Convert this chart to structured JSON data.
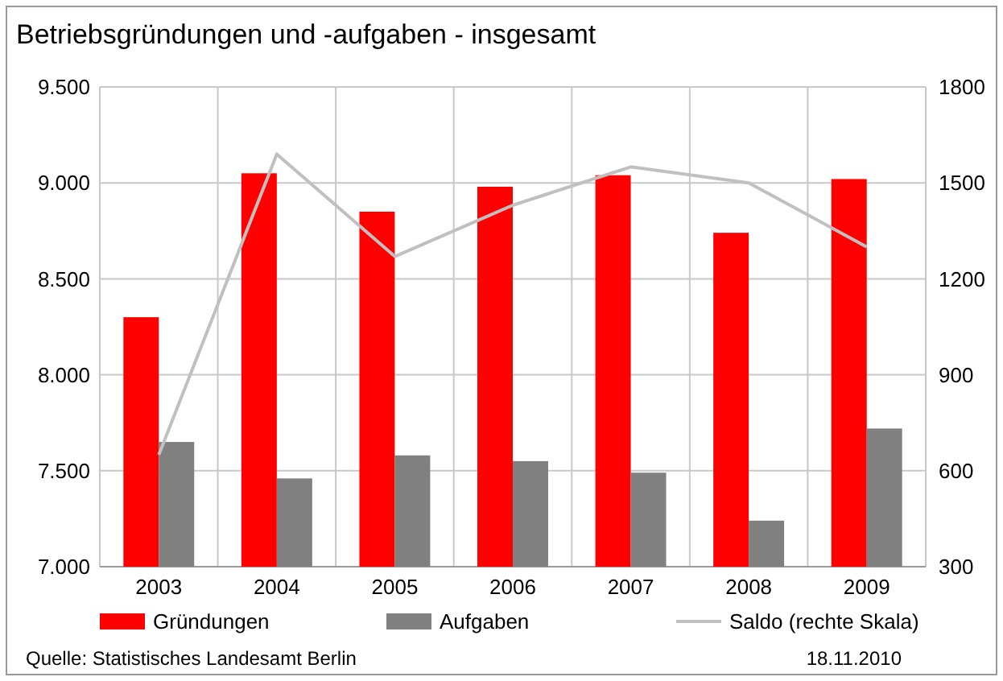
{
  "chart_data": {
    "type": "bar",
    "title": "Betriebsgründungen und -aufgaben - insgesamt",
    "categories": [
      "2003",
      "2004",
      "2005",
      "2006",
      "2007",
      "2008",
      "2009"
    ],
    "series": [
      {
        "name": "Gründungen",
        "color": "#ff0000",
        "values": [
          8300,
          9050,
          8850,
          8980,
          9040,
          8740,
          9020
        ]
      },
      {
        "name": "Aufgaben",
        "color": "#808080",
        "values": [
          7650,
          7460,
          7580,
          7550,
          7490,
          7240,
          7720
        ]
      },
      {
        "name": "Saldo (rechte Skala)",
        "type": "line",
        "axis": "y2",
        "color": "#c0c0c0",
        "values": [
          650,
          1590,
          1270,
          1430,
          1550,
          1500,
          1300
        ]
      }
    ],
    "ylim": [
      7000,
      9500
    ],
    "yticks": [
      {
        "value": 7000,
        "label": "7.000"
      },
      {
        "value": 7500,
        "label": "7.500"
      },
      {
        "value": 8000,
        "label": "8.000"
      },
      {
        "value": 8500,
        "label": "8.500"
      },
      {
        "value": 9000,
        "label": "9.000"
      },
      {
        "value": 9500,
        "label": "9.500"
      }
    ],
    "y2lim": [
      300,
      1800
    ],
    "y2ticks": [
      300,
      600,
      900,
      1200,
      1500,
      1800
    ],
    "grid": true,
    "legend": "bottom",
    "annotations": [
      "Quelle: Statistisches Landesamt Berlin",
      "18.11.2010"
    ]
  }
}
